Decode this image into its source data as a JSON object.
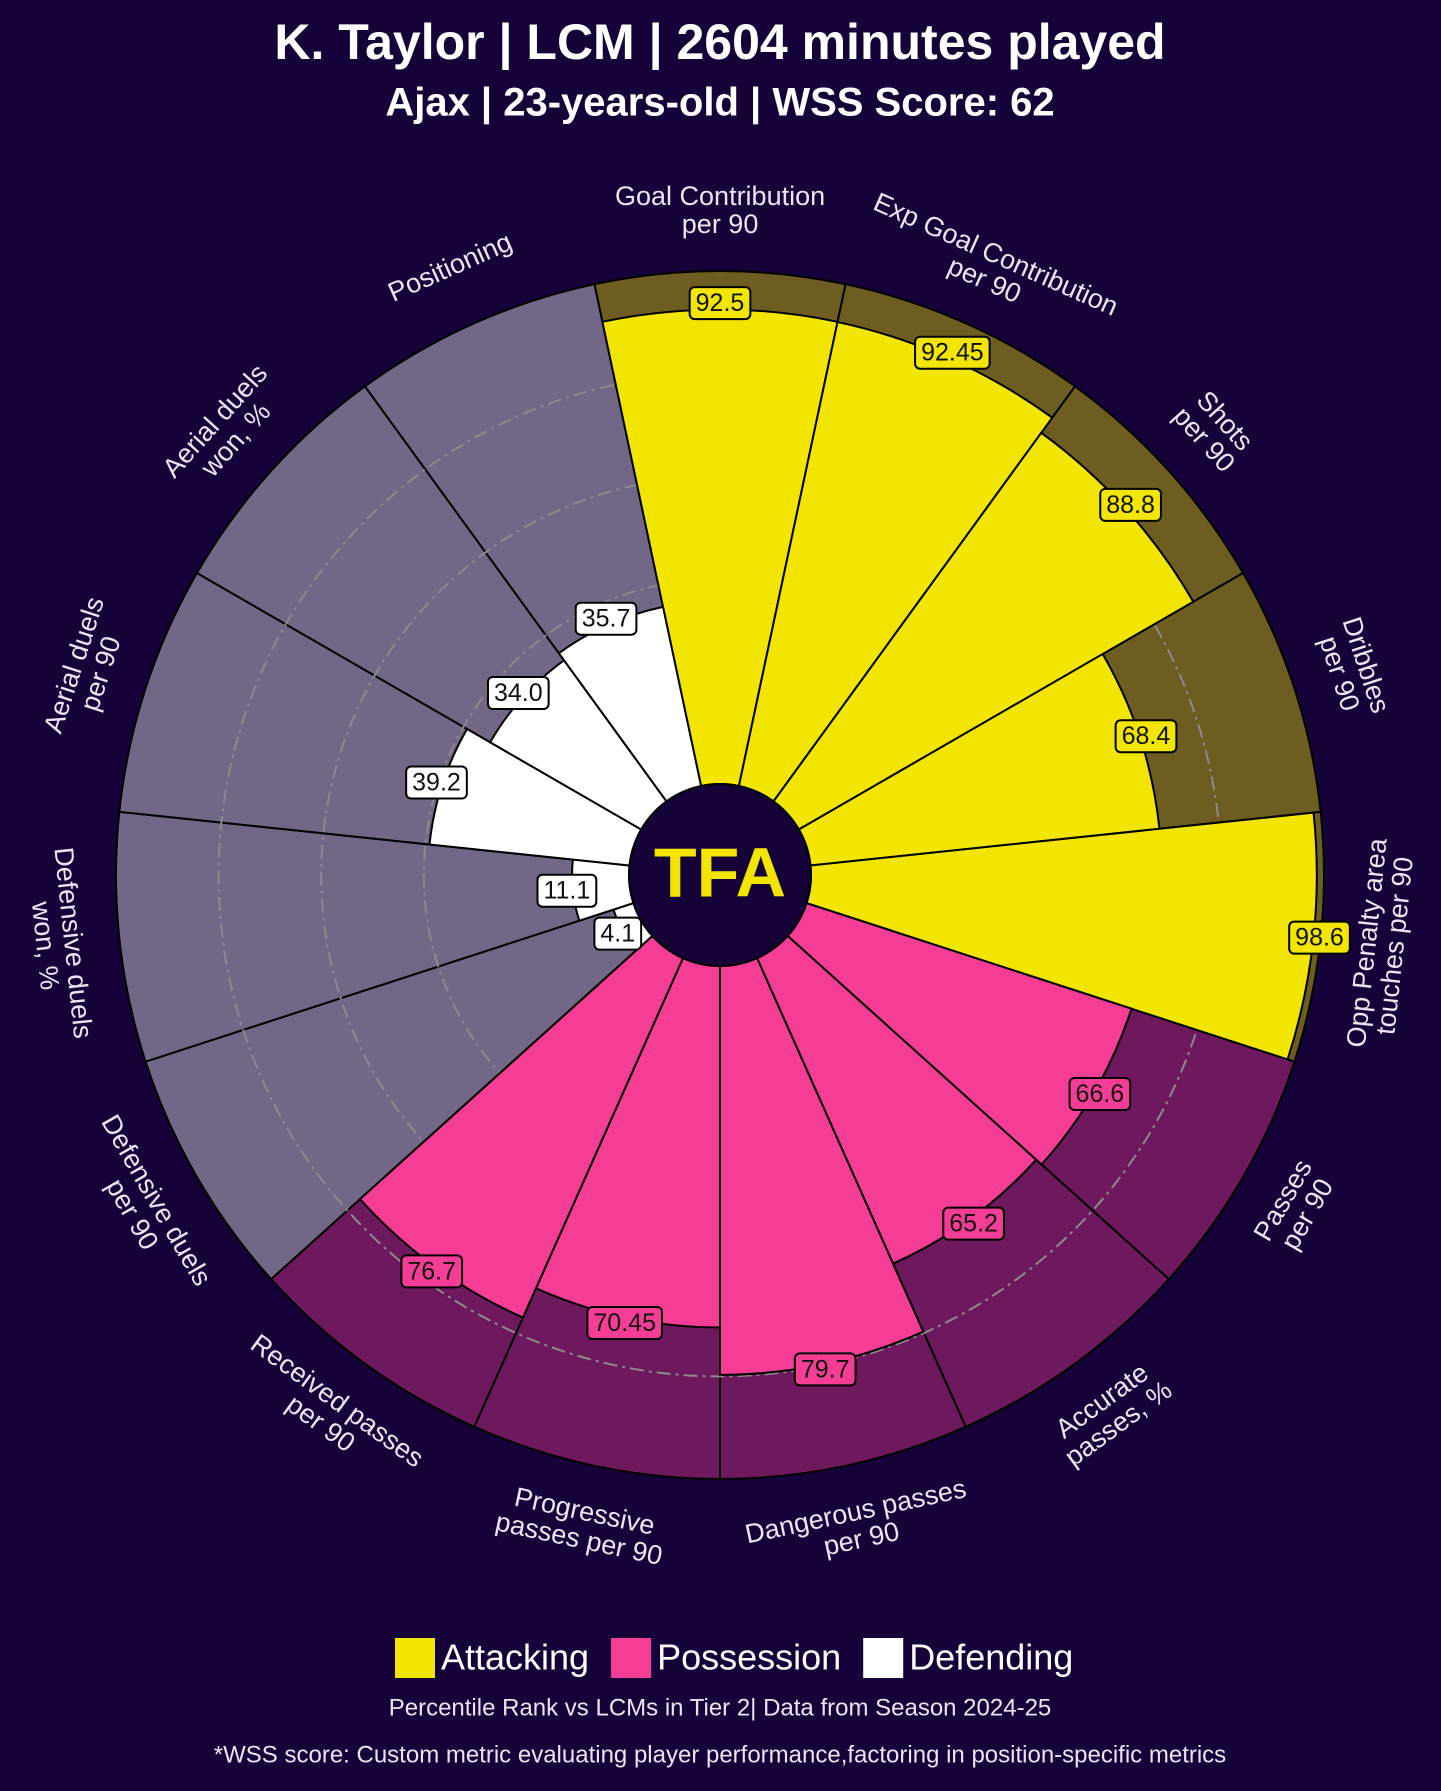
{
  "chart_data": {
    "type": "pizza",
    "title": "K. Taylor | LCM | 2604 minutes played",
    "subtitle": "Ajax | 23-years-old | WSS Score: 62",
    "logo": "TFA",
    "categories": [
      "Goal Contribution\nper 90",
      "Exp Goal Contribution\nper 90",
      "Shots\nper 90",
      "Dribbles\nper 90",
      "Opp Penalty area\ntouches per 90",
      "Passes\nper 90",
      "Accurate\npasses, %",
      "Dangerous passes\nper 90",
      "Progressive\npasses per 90",
      "Received passes\nper 90",
      "Defensive duels\nper 90",
      "Defensive duels\nwon, %",
      "Aerial duels\nper 90",
      "Aerial duels\nwon, %",
      "Positioning"
    ],
    "values": [
      92.5,
      92.45,
      88.8,
      68.4,
      98.6,
      66.6,
      65.2,
      79.7,
      70.45,
      76.7,
      4.1,
      11.1,
      39.2,
      34.0,
      35.7
    ],
    "value_labels": [
      "92.5",
      "92.45",
      "88.8",
      "68.4",
      "98.6",
      "66.6",
      "65.2",
      "79.7",
      "70.45",
      "76.7",
      "4.1",
      "11.1",
      "39.2",
      "34.0",
      "35.7"
    ],
    "colors": [
      "#f2e600",
      "#f2e600",
      "#f2e600",
      "#f2e600",
      "#f2e600",
      "#f53d96",
      "#f53d96",
      "#f53d96",
      "#f53d96",
      "#f53d96",
      "#ffffff",
      "#ffffff",
      "#ffffff",
      "#ffffff",
      "#ffffff"
    ],
    "legend": [
      {
        "name": "Attacking",
        "color": "#f2e600"
      },
      {
        "name": "Possession",
        "color": "#f53d96"
      },
      {
        "name": "Defending",
        "color": "#ffffff"
      }
    ],
    "ylim": [
      0,
      100
    ],
    "yticks": [
      40,
      60,
      80
    ],
    "grid": true,
    "footnotes": [
      "Percentile Rank vs LCMs in Tier 2| Data from Season 2024-25",
      "*WSS score: Custom metric evaluating player performance,factoring in position-specific metrics"
    ]
  }
}
